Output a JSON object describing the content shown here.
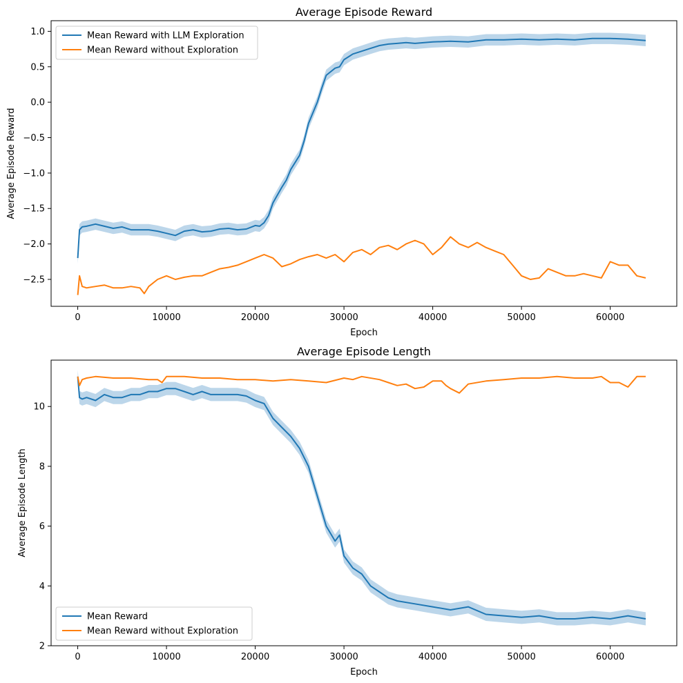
{
  "colors": {
    "blue": "#1f77b4",
    "orange": "#ff7f0e",
    "band": "#a6c8e3"
  },
  "chart_data": [
    {
      "type": "line",
      "title": "Average Episode Reward",
      "xlabel": "Epoch",
      "ylabel": "Average Episode Reward",
      "xlim": [
        -3000,
        67500
      ],
      "ylim": [
        -2.88,
        1.15
      ],
      "xticks": [
        0,
        10000,
        20000,
        30000,
        40000,
        50000,
        60000
      ],
      "yticks": [
        -2.5,
        -2.0,
        -1.5,
        -1.0,
        -0.5,
        0.0,
        0.5,
        1.0
      ],
      "ytick_labels": [
        "−2.5",
        "−2.0",
        "−1.5",
        "−1.0",
        "−0.5",
        "0.0",
        "0.5",
        "1.0"
      ],
      "grid": false,
      "legend": "upper left",
      "series": [
        {
          "name": "Mean Reward with LLM Exploration",
          "color": "#1f77b4",
          "band": 0.08,
          "x": [
            0,
            200,
            500,
            1000,
            2000,
            3000,
            4000,
            5000,
            6000,
            7000,
            8000,
            9000,
            10000,
            11000,
            12000,
            13000,
            14000,
            15000,
            16000,
            17000,
            18000,
            19000,
            20000,
            20500,
            21000,
            21500,
            22000,
            23000,
            23500,
            24000,
            25000,
            25500,
            26000,
            26500,
            27000,
            27500,
            28000,
            29000,
            29500,
            30000,
            31000,
            32000,
            33000,
            34000,
            35000,
            36000,
            37000,
            38000,
            40000,
            42000,
            44000,
            46000,
            48000,
            50000,
            52000,
            54000,
            56000,
            58000,
            60000,
            62000,
            64000
          ],
          "values": [
            -2.2,
            -1.8,
            -1.76,
            -1.75,
            -1.72,
            -1.75,
            -1.78,
            -1.76,
            -1.8,
            -1.8,
            -1.8,
            -1.82,
            -1.85,
            -1.88,
            -1.82,
            -1.8,
            -1.83,
            -1.82,
            -1.79,
            -1.78,
            -1.8,
            -1.79,
            -1.74,
            -1.75,
            -1.7,
            -1.6,
            -1.42,
            -1.2,
            -1.1,
            -0.95,
            -0.75,
            -0.55,
            -0.3,
            -0.15,
            0.0,
            0.2,
            0.38,
            0.48,
            0.5,
            0.6,
            0.68,
            0.72,
            0.76,
            0.8,
            0.82,
            0.83,
            0.84,
            0.83,
            0.85,
            0.86,
            0.85,
            0.88,
            0.88,
            0.89,
            0.88,
            0.89,
            0.88,
            0.9,
            0.9,
            0.89,
            0.87
          ]
        },
        {
          "name": "Mean Reward without Exploration",
          "color": "#ff7f0e",
          "x": [
            0,
            200,
            500,
            1000,
            2000,
            3000,
            4000,
            5000,
            6000,
            7000,
            7500,
            8000,
            9000,
            10000,
            11000,
            12000,
            13000,
            14000,
            15000,
            16000,
            17000,
            18000,
            19000,
            20000,
            21000,
            22000,
            23000,
            24000,
            25000,
            26000,
            27000,
            28000,
            29000,
            30000,
            31000,
            32000,
            33000,
            34000,
            35000,
            36000,
            37000,
            38000,
            39000,
            40000,
            41000,
            42000,
            43000,
            44000,
            45000,
            46000,
            47000,
            48000,
            49000,
            50000,
            51000,
            52000,
            53000,
            54000,
            55000,
            56000,
            57000,
            58000,
            59000,
            60000,
            61000,
            62000,
            63000,
            64000
          ],
          "values": [
            -2.72,
            -2.45,
            -2.6,
            -2.62,
            -2.6,
            -2.58,
            -2.62,
            -2.62,
            -2.6,
            -2.62,
            -2.7,
            -2.6,
            -2.5,
            -2.45,
            -2.5,
            -2.47,
            -2.45,
            -2.45,
            -2.4,
            -2.35,
            -2.33,
            -2.3,
            -2.25,
            -2.2,
            -2.15,
            -2.2,
            -2.32,
            -2.28,
            -2.22,
            -2.18,
            -2.15,
            -2.2,
            -2.15,
            -2.25,
            -2.12,
            -2.08,
            -2.15,
            -2.05,
            -2.02,
            -2.08,
            -2.0,
            -1.95,
            -2.0,
            -2.15,
            -2.05,
            -1.9,
            -2.0,
            -2.05,
            -1.98,
            -2.05,
            -2.1,
            -2.15,
            -2.3,
            -2.45,
            -2.5,
            -2.48,
            -2.35,
            -2.4,
            -2.45,
            -2.45,
            -2.42,
            -2.45,
            -2.48,
            -2.25,
            -2.3,
            -2.3,
            -2.45,
            -2.48
          ]
        }
      ]
    },
    {
      "type": "line",
      "title": "Average Episode Length",
      "xlabel": "Epoch",
      "ylabel": "Average Episode Length",
      "xlim": [
        -3000,
        67500
      ],
      "ylim": [
        2.0,
        11.55
      ],
      "xticks": [
        0,
        10000,
        20000,
        30000,
        40000,
        50000,
        60000
      ],
      "yticks": [
        2,
        4,
        6,
        8,
        10
      ],
      "ytick_labels": [
        "2",
        "4",
        "6",
        "8",
        "10"
      ],
      "grid": false,
      "legend": "lower left",
      "series": [
        {
          "name": "Mean Reward",
          "color": "#1f77b4",
          "band": 0.22,
          "x": [
            0,
            200,
            500,
            1000,
            2000,
            3000,
            4000,
            5000,
            6000,
            7000,
            8000,
            9000,
            10000,
            11000,
            12000,
            13000,
            14000,
            15000,
            16000,
            17000,
            18000,
            19000,
            20000,
            21000,
            22000,
            23000,
            24000,
            25000,
            26000,
            27000,
            28000,
            29000,
            29500,
            30000,
            31000,
            32000,
            33000,
            34000,
            35000,
            36000,
            38000,
            40000,
            42000,
            44000,
            46000,
            48000,
            50000,
            52000,
            54000,
            56000,
            58000,
            60000,
            62000,
            64000
          ],
          "values": [
            11.0,
            10.3,
            10.25,
            10.3,
            10.2,
            10.4,
            10.3,
            10.3,
            10.4,
            10.4,
            10.5,
            10.5,
            10.6,
            10.6,
            10.5,
            10.4,
            10.5,
            10.4,
            10.4,
            10.4,
            10.4,
            10.35,
            10.2,
            10.1,
            9.6,
            9.3,
            9.0,
            8.6,
            8.0,
            7.0,
            6.0,
            5.5,
            5.7,
            5.0,
            4.6,
            4.4,
            4.0,
            3.8,
            3.6,
            3.5,
            3.4,
            3.3,
            3.2,
            3.3,
            3.05,
            3.0,
            2.95,
            3.0,
            2.9,
            2.9,
            2.95,
            2.9,
            3.0,
            2.9
          ]
        },
        {
          "name": "Mean Reward without Exploration",
          "color": "#ff7f0e",
          "x": [
            0,
            200,
            500,
            1000,
            2000,
            4000,
            6000,
            8000,
            9000,
            9500,
            10000,
            12000,
            14000,
            16000,
            18000,
            20000,
            22000,
            24000,
            26000,
            28000,
            30000,
            31000,
            32000,
            34000,
            35000,
            36000,
            37000,
            38000,
            39000,
            40000,
            41000,
            41500,
            42000,
            43000,
            44000,
            46000,
            48000,
            50000,
            52000,
            54000,
            56000,
            58000,
            59000,
            60000,
            61000,
            62000,
            63000,
            64000
          ],
          "values": [
            11.0,
            10.7,
            10.9,
            10.95,
            11.0,
            10.95,
            10.95,
            10.9,
            10.9,
            10.8,
            11.0,
            11.0,
            10.95,
            10.95,
            10.9,
            10.9,
            10.85,
            10.9,
            10.85,
            10.8,
            10.95,
            10.9,
            11.0,
            10.9,
            10.8,
            10.7,
            10.75,
            10.6,
            10.65,
            10.85,
            10.85,
            10.7,
            10.6,
            10.45,
            10.75,
            10.85,
            10.9,
            10.95,
            10.95,
            11.0,
            10.95,
            10.95,
            11.0,
            10.8,
            10.8,
            10.65,
            11.0,
            11.0
          ]
        }
      ]
    }
  ]
}
